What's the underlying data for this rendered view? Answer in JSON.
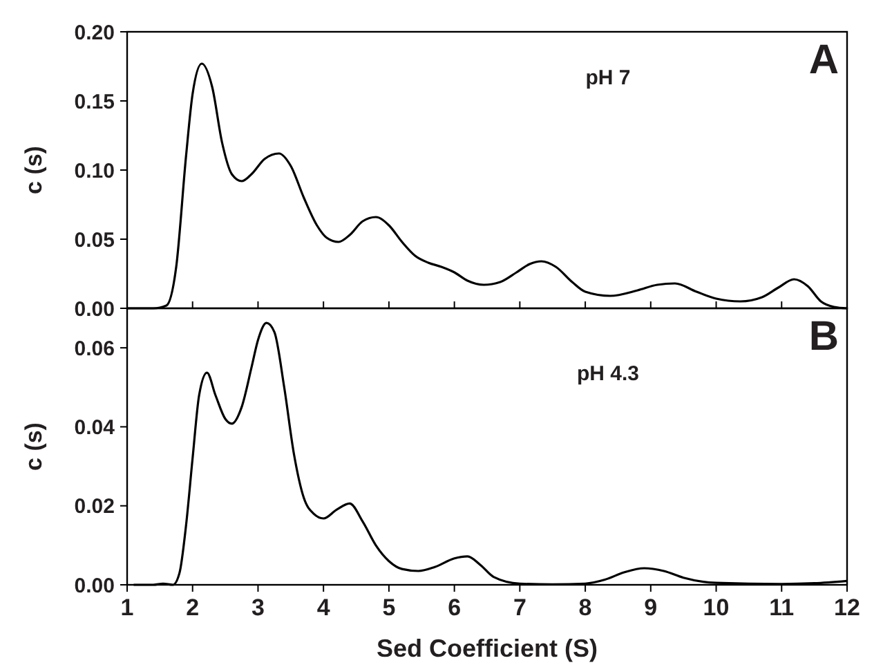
{
  "chart_data": [
    {
      "type": "line",
      "title": "A",
      "ylabel": "c (s)",
      "annotations": [
        "pH 7"
      ],
      "tick_labels": "y",
      "xlim": [
        1,
        12
      ],
      "xticks": [
        1,
        2,
        3,
        4,
        5,
        6,
        7,
        8,
        9,
        10,
        11,
        12
      ],
      "ylim": [
        0,
        0.2
      ],
      "yticks": [
        {
          "value": 0,
          "label": "0.00"
        },
        {
          "value": 0.05,
          "label": "0.05"
        },
        {
          "value": 0.1,
          "label": "0.10"
        },
        {
          "value": 0.15,
          "label": "0.15"
        },
        {
          "value": 0.2,
          "label": "0.20"
        }
      ],
      "marker": "none",
      "line_style": "solid",
      "series": [
        {
          "color": "#000000",
          "x": [
            1.0,
            1.4,
            1.6,
            1.75,
            1.9,
            2.0,
            2.14,
            2.3,
            2.45,
            2.6,
            2.75,
            2.9,
            3.1,
            3.32,
            3.5,
            3.7,
            3.9,
            4.05,
            4.23,
            4.4,
            4.6,
            4.8,
            5.0,
            5.2,
            5.4,
            5.6,
            5.8,
            6.0,
            6.2,
            6.45,
            6.7,
            6.95,
            7.15,
            7.33,
            7.55,
            7.8,
            8.0,
            8.38,
            8.8,
            9.1,
            9.37,
            9.7,
            10.0,
            10.37,
            10.7,
            10.95,
            11.19,
            11.4,
            11.6,
            11.8,
            12.0
          ],
          "values": [
            0,
            0,
            0.002,
            0.03,
            0.11,
            0.155,
            0.177,
            0.16,
            0.12,
            0.097,
            0.092,
            0.097,
            0.108,
            0.112,
            0.103,
            0.08,
            0.06,
            0.051,
            0.048,
            0.053,
            0.063,
            0.066,
            0.06,
            0.048,
            0.038,
            0.033,
            0.03,
            0.026,
            0.02,
            0.017,
            0.019,
            0.026,
            0.032,
            0.034,
            0.03,
            0.019,
            0.012,
            0.009,
            0.013,
            0.017,
            0.018,
            0.012,
            0.007,
            0.005,
            0.008,
            0.015,
            0.021,
            0.016,
            0.005,
            0.001,
            0
          ]
        }
      ]
    },
    {
      "type": "line",
      "title": "B",
      "ylabel": "c (s)",
      "xlabel": "Sed Coefficient (S)",
      "annotations": [
        "pH 4.3"
      ],
      "xlim": [
        1,
        12
      ],
      "xticks": [
        1,
        2,
        3,
        4,
        5,
        6,
        7,
        8,
        9,
        10,
        11,
        12
      ],
      "ylim": [
        0,
        0.07
      ],
      "yticks": [
        {
          "value": 0,
          "label": "0.00"
        },
        {
          "value": 0.02,
          "label": "0.02"
        },
        {
          "value": 0.04,
          "label": "0.04"
        },
        {
          "value": 0.06,
          "label": "0.06"
        }
      ],
      "marker": "none",
      "line_style": "solid",
      "series": [
        {
          "color": "#000000",
          "x": [
            1.1,
            1.4,
            1.55,
            1.7,
            1.8,
            1.9,
            2.0,
            2.1,
            2.22,
            2.35,
            2.5,
            2.6,
            2.75,
            2.9,
            3.0,
            3.13,
            3.25,
            3.4,
            3.55,
            3.7,
            3.85,
            4.0,
            4.2,
            4.4,
            4.6,
            4.8,
            5.0,
            5.2,
            5.45,
            5.7,
            6.0,
            6.2,
            6.4,
            6.6,
            7.0,
            7.5,
            8.0,
            8.3,
            8.6,
            8.9,
            9.2,
            9.5,
            10.0,
            11.0,
            11.5,
            12.0
          ],
          "values": [
            0,
            0,
            0.0003,
            0,
            0.003,
            0.015,
            0.032,
            0.048,
            0.0537,
            0.048,
            0.042,
            0.0408,
            0.045,
            0.055,
            0.062,
            0.0663,
            0.064,
            0.05,
            0.033,
            0.022,
            0.018,
            0.0168,
            0.019,
            0.0206,
            0.016,
            0.01,
            0.006,
            0.004,
            0.0035,
            0.0045,
            0.0067,
            0.0072,
            0.005,
            0.002,
            0.0003,
            0.0001,
            0.0003,
            0.0013,
            0.0032,
            0.0042,
            0.0035,
            0.0018,
            0.0005,
            0.0002,
            0.0004,
            0.001
          ]
        }
      ]
    }
  ]
}
